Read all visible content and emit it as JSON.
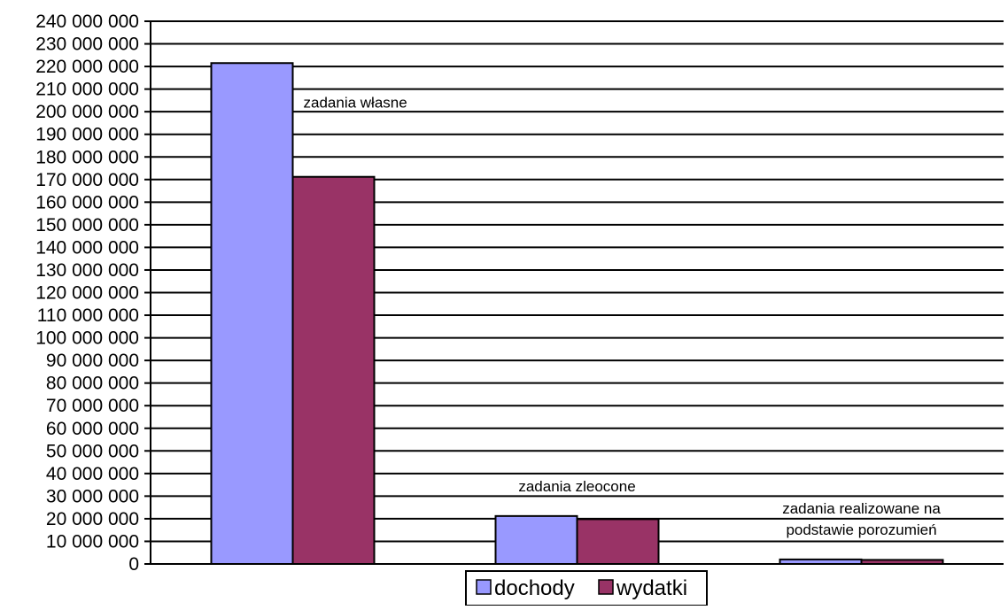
{
  "chart_data": {
    "type": "bar",
    "categories": [
      "zadania własne",
      "zadania zleocone",
      "zadania realizowane na podstawie porozumień"
    ],
    "category_label_lines": [
      [
        "zadania własne"
      ],
      [
        "zadania zleocone"
      ],
      [
        "zadania realizowane na",
        "podstawie porozumień"
      ]
    ],
    "series": [
      {
        "name": "dochody",
        "color": "#9999ff",
        "values": [
          221500000,
          21200000,
          2000000
        ]
      },
      {
        "name": "wydatki",
        "color": "#993366",
        "values": [
          171200000,
          19800000,
          1800000
        ]
      }
    ],
    "ylim": [
      0,
      240000000
    ],
    "ytick_step": 10000000,
    "ytick_labels": [
      "0",
      "10 000 000",
      "20 000 000",
      "30 000 000",
      "40 000 000",
      "50 000 000",
      "60 000 000",
      "70 000 000",
      "80 000 000",
      "90 000 000",
      "100 000 000",
      "110 000 000",
      "120 000 000",
      "130 000 000",
      "140 000 000",
      "150 000 000",
      "160 000 000",
      "170 000 000",
      "180 000 000",
      "190 000 000",
      "200 000 000",
      "210 000 000",
      "220 000 000",
      "230 000 000",
      "240 000 000"
    ],
    "grid": true,
    "legend_position": "bottom-center",
    "title": "",
    "xlabel": "",
    "ylabel": ""
  }
}
